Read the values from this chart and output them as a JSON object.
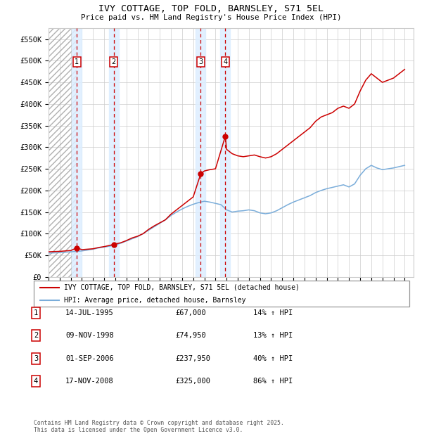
{
  "title": "IVY COTTAGE, TOP FOLD, BARNSLEY, S71 5EL",
  "subtitle": "Price paid vs. HM Land Registry's House Price Index (HPI)",
  "ylabel_ticks": [
    "£0",
    "£50K",
    "£100K",
    "£150K",
    "£200K",
    "£250K",
    "£300K",
    "£350K",
    "£400K",
    "£450K",
    "£500K",
    "£550K"
  ],
  "ytick_values": [
    0,
    50000,
    100000,
    150000,
    200000,
    250000,
    300000,
    350000,
    400000,
    450000,
    500000,
    550000
  ],
  "xmin": 1993.0,
  "xmax": 2025.8,
  "ymin": 0,
  "ymax": 575000,
  "transactions": [
    {
      "num": 1,
      "year": 1995.54,
      "price": 67000,
      "date": "14-JUL-1995",
      "hpi_pct": "14%"
    },
    {
      "num": 2,
      "year": 1998.86,
      "price": 74950,
      "date": "09-NOV-1998",
      "hpi_pct": "13%"
    },
    {
      "num": 3,
      "year": 2006.67,
      "price": 237950,
      "date": "01-SEP-2006",
      "hpi_pct": "40%"
    },
    {
      "num": 4,
      "year": 2008.88,
      "price": 325000,
      "date": "17-NOV-2008",
      "hpi_pct": "86%"
    }
  ],
  "red_line_color": "#cc0000",
  "blue_line_color": "#7aadda",
  "shade_color": "#ddeeff",
  "legend_line1": "IVY COTTAGE, TOP FOLD, BARNSLEY, S71 5EL (detached house)",
  "legend_line2": "HPI: Average price, detached house, Barnsley",
  "footer1": "Contains HM Land Registry data © Crown copyright and database right 2025.",
  "footer2": "This data is licensed under the Open Government Licence v3.0.",
  "red_series_x": [
    1993.0,
    1993.5,
    1994.0,
    1994.5,
    1995.0,
    1995.54,
    1996.0,
    1996.5,
    1997.0,
    1997.5,
    1998.0,
    1998.86,
    1999.0,
    1999.5,
    2000.0,
    2000.5,
    2001.0,
    2001.5,
    2002.0,
    2002.5,
    2003.0,
    2003.5,
    2004.0,
    2004.5,
    2005.0,
    2005.5,
    2006.0,
    2006.67,
    2007.0,
    2007.5,
    2008.0,
    2008.88,
    2009.0,
    2009.5,
    2010.0,
    2010.5,
    2011.0,
    2011.5,
    2012.0,
    2012.5,
    2013.0,
    2013.5,
    2014.0,
    2014.5,
    2015.0,
    2015.5,
    2016.0,
    2016.5,
    2017.0,
    2017.5,
    2018.0,
    2018.5,
    2019.0,
    2019.5,
    2020.0,
    2020.5,
    2021.0,
    2021.5,
    2022.0,
    2022.5,
    2023.0,
    2023.5,
    2024.0,
    2024.5,
    2025.0
  ],
  "red_series_y": [
    58000,
    58500,
    59000,
    60000,
    61000,
    67000,
    63000,
    64000,
    65000,
    68000,
    70000,
    74950,
    76000,
    79000,
    84000,
    90000,
    94000,
    100000,
    110000,
    118000,
    125000,
    132000,
    145000,
    155000,
    165000,
    175000,
    185000,
    237950,
    245000,
    248000,
    250000,
    325000,
    295000,
    285000,
    280000,
    278000,
    280000,
    282000,
    278000,
    275000,
    278000,
    285000,
    295000,
    305000,
    315000,
    325000,
    335000,
    345000,
    360000,
    370000,
    375000,
    380000,
    390000,
    395000,
    390000,
    400000,
    430000,
    455000,
    470000,
    460000,
    450000,
    455000,
    460000,
    470000,
    480000
  ],
  "blue_series_x": [
    1993.0,
    1993.5,
    1994.0,
    1994.5,
    1995.0,
    1995.5,
    1996.0,
    1996.5,
    1997.0,
    1997.5,
    1998.0,
    1998.5,
    1999.0,
    1999.5,
    2000.0,
    2000.5,
    2001.0,
    2001.5,
    2002.0,
    2002.5,
    2003.0,
    2003.5,
    2004.0,
    2004.5,
    2005.0,
    2005.5,
    2006.0,
    2006.5,
    2007.0,
    2007.5,
    2008.0,
    2008.5,
    2009.0,
    2009.5,
    2010.0,
    2010.5,
    2011.0,
    2011.5,
    2012.0,
    2012.5,
    2013.0,
    2013.5,
    2014.0,
    2014.5,
    2015.0,
    2015.5,
    2016.0,
    2016.5,
    2017.0,
    2017.5,
    2018.0,
    2018.5,
    2019.0,
    2019.5,
    2020.0,
    2020.5,
    2021.0,
    2021.5,
    2022.0,
    2022.5,
    2023.0,
    2023.5,
    2024.0,
    2024.5,
    2025.0
  ],
  "blue_series_y": [
    55000,
    55500,
    56000,
    57000,
    58000,
    59000,
    60000,
    62000,
    64000,
    67000,
    69000,
    71000,
    74000,
    78000,
    83000,
    88000,
    93000,
    100000,
    108000,
    116000,
    124000,
    132000,
    142000,
    150000,
    157000,
    163000,
    168000,
    172000,
    175000,
    173000,
    170000,
    167000,
    155000,
    150000,
    152000,
    153000,
    155000,
    153000,
    148000,
    146000,
    148000,
    153000,
    160000,
    167000,
    173000,
    178000,
    183000,
    188000,
    195000,
    200000,
    204000,
    207000,
    210000,
    213000,
    208000,
    215000,
    235000,
    250000,
    258000,
    252000,
    248000,
    250000,
    252000,
    255000,
    258000
  ]
}
